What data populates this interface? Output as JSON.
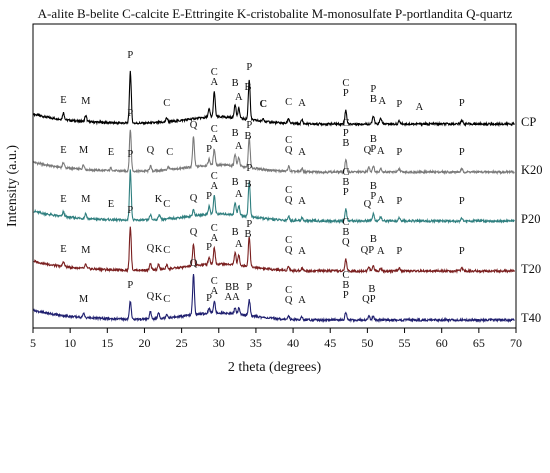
{
  "legend_text": "A-alite  B-belite  C-calcite  E-Ettringite  K-cristobalite  M-monosulfate  P-portlandita  Q-quartz",
  "chart_data": {
    "type": "line",
    "xlabel": "2 theta (degrees)",
    "ylabel": "Intensity (a.u.)",
    "xlim": [
      5,
      70
    ],
    "xticks": [
      5,
      10,
      15,
      20,
      25,
      30,
      35,
      40,
      45,
      50,
      55,
      60,
      65,
      70
    ],
    "yticks_shown": false,
    "grid": false,
    "series": [
      {
        "name": "CP",
        "color": "#000000",
        "peaks": [
          [
            9.1,
            7
          ],
          [
            12.1,
            6
          ],
          [
            18.1,
            52
          ],
          [
            23.0,
            4
          ],
          [
            28.7,
            8
          ],
          [
            29.4,
            25
          ],
          [
            32.2,
            14
          ],
          [
            32.7,
            10
          ],
          [
            34.1,
            40
          ],
          [
            36.0,
            3
          ],
          [
            39.4,
            5
          ],
          [
            41.2,
            4
          ],
          [
            47.1,
            14
          ],
          [
            50.8,
            8
          ],
          [
            51.8,
            6
          ],
          [
            54.3,
            3
          ],
          [
            62.7,
            4
          ]
        ],
        "labels": [
          {
            "x": 9.1,
            "t": "E"
          },
          {
            "x": 12.1,
            "t": "M"
          },
          {
            "x": 18.1,
            "t": "P"
          },
          {
            "x": 23.0,
            "t": "C"
          },
          {
            "x": 29.4,
            "t": "A",
            "row": 0
          },
          {
            "x": 29.4,
            "t": "C",
            "row": 1
          },
          {
            "x": 32.2,
            "t": "B",
            "row": 1
          },
          {
            "x": 32.7,
            "t": "A",
            "row": 0
          },
          {
            "x": 33.0,
            "t": "B",
            "row": 1,
            "dx": 7
          },
          {
            "x": 34.1,
            "t": "P"
          },
          {
            "x": 36.0,
            "t": "C",
            "bold": true
          },
          {
            "x": 39.4,
            "t": "C"
          },
          {
            "x": 41.2,
            "t": "A"
          },
          {
            "x": 47.1,
            "t": "P",
            "row": 0
          },
          {
            "x": 47.1,
            "t": "C",
            "row": 1
          },
          {
            "x": 50.8,
            "t": "B",
            "row": 0
          },
          {
            "x": 50.8,
            "t": "P",
            "row": 1
          },
          {
            "x": 52.0,
            "t": "A"
          },
          {
            "x": 54.3,
            "t": "P"
          },
          {
            "x": 57.0,
            "t": "A"
          },
          {
            "x": 62.7,
            "t": "P"
          }
        ]
      },
      {
        "name": "K20",
        "color": "#7a7a7a",
        "peaks": [
          [
            9.1,
            5
          ],
          [
            11.8,
            5
          ],
          [
            15.5,
            3
          ],
          [
            18.1,
            42
          ],
          [
            20.8,
            5
          ],
          [
            23.2,
            3
          ],
          [
            26.6,
            30
          ],
          [
            28.7,
            6
          ],
          [
            29.4,
            16
          ],
          [
            32.2,
            12
          ],
          [
            32.7,
            9
          ],
          [
            34.1,
            30
          ],
          [
            39.4,
            5
          ],
          [
            41.2,
            3
          ],
          [
            47.1,
            12
          ],
          [
            50.2,
            5
          ],
          [
            50.8,
            6
          ],
          [
            51.8,
            4
          ],
          [
            54.3,
            3
          ],
          [
            62.7,
            3
          ]
        ],
        "labels": [
          {
            "x": 9.1,
            "t": "E"
          },
          {
            "x": 11.8,
            "t": "M"
          },
          {
            "x": 15.5,
            "t": "E"
          },
          {
            "x": 18.1,
            "t": "P"
          },
          {
            "x": 20.8,
            "t": "Q"
          },
          {
            "x": 23.4,
            "t": "C"
          },
          {
            "x": 26.6,
            "t": "Q"
          },
          {
            "x": 28.7,
            "t": "P"
          },
          {
            "x": 29.4,
            "t": "A",
            "row": 0
          },
          {
            "x": 29.4,
            "t": "C",
            "row": 1
          },
          {
            "x": 32.2,
            "t": "B",
            "row": 1
          },
          {
            "x": 32.7,
            "t": "A",
            "row": 0
          },
          {
            "x": 33.0,
            "t": "B",
            "row": 1,
            "dx": 7
          },
          {
            "x": 34.1,
            "t": "P"
          },
          {
            "x": 39.4,
            "t": "Q",
            "row": 0
          },
          {
            "x": 39.4,
            "t": "C",
            "row": 1
          },
          {
            "x": 41.2,
            "t": "A"
          },
          {
            "x": 47.1,
            "t": "B",
            "row": 0
          },
          {
            "x": 47.1,
            "t": "P",
            "row": 1
          },
          {
            "x": 47.1,
            "t": "C",
            "row": 2
          },
          {
            "x": 50.0,
            "t": "Q"
          },
          {
            "x": 50.8,
            "t": "P",
            "row": 0
          },
          {
            "x": 50.8,
            "t": "B",
            "row": 1
          },
          {
            "x": 51.8,
            "t": "A"
          },
          {
            "x": 54.3,
            "t": "P"
          },
          {
            "x": 62.7,
            "t": "P"
          }
        ]
      },
      {
        "name": "P20",
        "color": "#2f7f7f",
        "peaks": [
          [
            9.1,
            5
          ],
          [
            12.1,
            5
          ],
          [
            18.1,
            50
          ],
          [
            20.8,
            5
          ],
          [
            22.0,
            5
          ],
          [
            26.6,
            6
          ],
          [
            28.7,
            8
          ],
          [
            29.4,
            18
          ],
          [
            32.2,
            12
          ],
          [
            32.7,
            10
          ],
          [
            34.1,
            36
          ],
          [
            39.4,
            4
          ],
          [
            41.2,
            3
          ],
          [
            47.1,
            12
          ],
          [
            50.8,
            8
          ],
          [
            51.8,
            4
          ],
          [
            54.3,
            3
          ],
          [
            62.7,
            3
          ]
        ],
        "labels": [
          {
            "x": 9.1,
            "t": "E"
          },
          {
            "x": 12.1,
            "t": "M"
          },
          {
            "x": 15.5,
            "t": "E"
          },
          {
            "x": 18.1,
            "t": "P"
          },
          {
            "x": 21.9,
            "t": "K"
          },
          {
            "x": 23.0,
            "t": "C"
          },
          {
            "x": 26.6,
            "t": "Q"
          },
          {
            "x": 28.7,
            "t": "P"
          },
          {
            "x": 29.4,
            "t": "A",
            "row": 0
          },
          {
            "x": 29.4,
            "t": "C",
            "row": 1
          },
          {
            "x": 32.2,
            "t": "B",
            "row": 1
          },
          {
            "x": 32.7,
            "t": "A",
            "row": 0
          },
          {
            "x": 33.0,
            "t": "B",
            "row": 1,
            "dx": 7
          },
          {
            "x": 34.1,
            "t": "P"
          },
          {
            "x": 39.4,
            "t": "Q",
            "row": 0
          },
          {
            "x": 39.4,
            "t": "C",
            "row": 1
          },
          {
            "x": 41.2,
            "t": "A"
          },
          {
            "x": 47.1,
            "t": "P",
            "row": 0
          },
          {
            "x": 47.1,
            "t": "B",
            "row": 1
          },
          {
            "x": 47.1,
            "t": "C",
            "row": 2
          },
          {
            "x": 50.0,
            "t": "Q"
          },
          {
            "x": 50.8,
            "t": "P",
            "row": 0
          },
          {
            "x": 50.8,
            "t": "B",
            "row": 1
          },
          {
            "x": 51.8,
            "t": "A"
          },
          {
            "x": 54.3,
            "t": "P"
          },
          {
            "x": 62.7,
            "t": "P"
          }
        ]
      },
      {
        "name": "T20",
        "color": "#7a1f1f",
        "peaks": [
          [
            9.1,
            5
          ],
          [
            12.1,
            4
          ],
          [
            18.1,
            44
          ],
          [
            20.8,
            6
          ],
          [
            21.9,
            5
          ],
          [
            23.0,
            4
          ],
          [
            26.6,
            22
          ],
          [
            28.7,
            7
          ],
          [
            29.4,
            16
          ],
          [
            32.2,
            12
          ],
          [
            32.7,
            10
          ],
          [
            34.1,
            30
          ],
          [
            39.4,
            4
          ],
          [
            41.2,
            3
          ],
          [
            47.1,
            12
          ],
          [
            50.2,
            4
          ],
          [
            50.8,
            5
          ],
          [
            51.8,
            3
          ],
          [
            54.3,
            3
          ],
          [
            62.7,
            3
          ]
        ],
        "labels": [
          {
            "x": 9.1,
            "t": "E"
          },
          {
            "x": 12.1,
            "t": "M"
          },
          {
            "x": 18.1,
            "t": "P"
          },
          {
            "x": 20.8,
            "t": "Q"
          },
          {
            "x": 21.9,
            "t": "K"
          },
          {
            "x": 23.0,
            "t": "C"
          },
          {
            "x": 26.6,
            "t": "Q"
          },
          {
            "x": 28.7,
            "t": "P"
          },
          {
            "x": 29.4,
            "t": "A",
            "row": 0
          },
          {
            "x": 29.4,
            "t": "C",
            "row": 1
          },
          {
            "x": 32.2,
            "t": "B",
            "row": 1
          },
          {
            "x": 32.7,
            "t": "A",
            "row": 0
          },
          {
            "x": 33.0,
            "t": "B",
            "row": 1,
            "dx": 7
          },
          {
            "x": 34.1,
            "t": "P"
          },
          {
            "x": 39.4,
            "t": "Q",
            "row": 0
          },
          {
            "x": 39.4,
            "t": "C",
            "row": 1
          },
          {
            "x": 41.2,
            "t": "A"
          },
          {
            "x": 47.1,
            "t": "Q",
            "row": 0
          },
          {
            "x": 47.1,
            "t": "B",
            "row": 1
          },
          {
            "x": 47.1,
            "t": "C",
            "row": 2
          },
          {
            "x": 50.0,
            "t": "QP"
          },
          {
            "x": 50.8,
            "t": "B",
            "row": 1
          },
          {
            "x": 51.8,
            "t": "A"
          },
          {
            "x": 54.3,
            "t": "P"
          },
          {
            "x": 62.7,
            "t": "P"
          }
        ]
      },
      {
        "name": "T40",
        "color": "#1f1f6f",
        "peaks": [
          [
            11.8,
            4
          ],
          [
            18.1,
            18
          ],
          [
            20.8,
            7
          ],
          [
            21.9,
            6
          ],
          [
            23.0,
            4
          ],
          [
            26.6,
            40
          ],
          [
            28.7,
            5
          ],
          [
            29.4,
            12
          ],
          [
            32.2,
            6
          ],
          [
            32.7,
            6
          ],
          [
            34.1,
            16
          ],
          [
            39.4,
            3
          ],
          [
            41.2,
            3
          ],
          [
            47.1,
            8
          ],
          [
            50.2,
            4
          ],
          [
            50.8,
            4
          ]
        ],
        "labels": [
          {
            "x": 11.8,
            "t": "M"
          },
          {
            "x": 18.1,
            "t": "P"
          },
          {
            "x": 20.8,
            "t": "Q"
          },
          {
            "x": 21.9,
            "t": "K"
          },
          {
            "x": 23.0,
            "t": "C"
          },
          {
            "x": 26.6,
            "t": "Q"
          },
          {
            "x": 28.7,
            "t": "P"
          },
          {
            "x": 29.4,
            "t": "A",
            "row": 0
          },
          {
            "x": 29.4,
            "t": "C",
            "row": 1
          },
          {
            "x": 31.8,
            "t": "AA",
            "row": 0
          },
          {
            "x": 31.8,
            "t": "BB",
            "row": 1
          },
          {
            "x": 34.1,
            "t": "P"
          },
          {
            "x": 39.4,
            "t": "Q",
            "row": 0
          },
          {
            "x": 39.4,
            "t": "C",
            "row": 1
          },
          {
            "x": 41.2,
            "t": "A"
          },
          {
            "x": 47.1,
            "t": "P",
            "row": 0
          },
          {
            "x": 47.1,
            "t": "B",
            "row": 1
          },
          {
            "x": 47.1,
            "t": "C",
            "row": 2
          },
          {
            "x": 50.2,
            "t": "QP",
            "row": 0
          },
          {
            "x": 50.6,
            "t": "B",
            "row": 1
          }
        ]
      }
    ]
  }
}
